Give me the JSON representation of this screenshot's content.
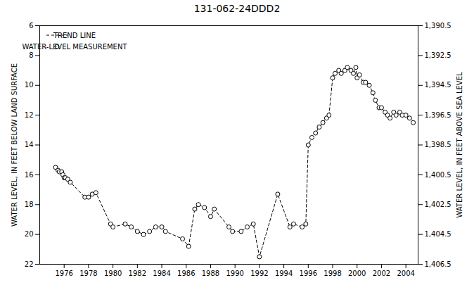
{
  "chart_data": {
    "type": "line",
    "title": "131-062-24DDD2",
    "ylabel": "WATER LEVEL, IN FEET BELOW LAND SURFACE",
    "y2label": "WATER LEVEL, IN FEET ABOVE SEA LEVEL",
    "x": [
      1975.3,
      1975.5,
      1975.6,
      1975.8,
      1975.9,
      1976.0,
      1976.1,
      1976.3,
      1976.5,
      1977.7,
      1978.0,
      1978.3,
      1978.6,
      1979.8,
      1980.0,
      1981.0,
      1981.5,
      1982.0,
      1982.5,
      1983.0,
      1983.5,
      1984.0,
      1984.3,
      1985.7,
      1986.2,
      1986.7,
      1987.0,
      1987.5,
      1988.0,
      1988.3,
      1989.5,
      1989.8,
      1990.5,
      1991.0,
      1991.5,
      1992.0,
      1993.5,
      1994.5,
      1994.8,
      1995.5,
      1995.8,
      1996.0,
      1996.3,
      1996.6,
      1996.9,
      1997.2,
      1997.5,
      1997.7,
      1998.0,
      1998.2,
      1998.5,
      1998.7,
      1999.0,
      1999.2,
      1999.5,
      1999.7,
      1999.9,
      2000.0,
      2000.2,
      2000.5,
      2000.7,
      2001.0,
      2001.3,
      2001.5,
      2001.8,
      2002.0,
      2002.3,
      2002.5,
      2002.7,
      2003.0,
      2003.2,
      2003.5,
      2003.7,
      2004.0,
      2004.3,
      2004.6
    ],
    "series": [
      {
        "name": "TREND LINE",
        "type": "line",
        "line_style": "dashed",
        "color": "#000000",
        "values": [
          15.5,
          15.7,
          15.8,
          15.8,
          16.0,
          16.2,
          16.2,
          16.3,
          16.5,
          17.5,
          17.5,
          17.3,
          17.2,
          19.3,
          19.5,
          19.3,
          19.5,
          19.8,
          20.0,
          19.8,
          19.5,
          19.5,
          19.8,
          20.3,
          20.8,
          18.3,
          18.0,
          18.2,
          18.8,
          18.3,
          19.5,
          19.8,
          19.8,
          19.5,
          19.3,
          21.5,
          17.3,
          19.5,
          19.3,
          19.5,
          19.3,
          14.0,
          13.5,
          13.2,
          12.8,
          12.5,
          12.2,
          12.0,
          9.5,
          9.2,
          9.0,
          9.2,
          9.0,
          8.8,
          9.0,
          9.2,
          8.8,
          9.5,
          9.3,
          9.8,
          9.8,
          10.0,
          10.5,
          11.0,
          11.5,
          11.5,
          11.8,
          12.0,
          12.2,
          11.8,
          12.0,
          11.8,
          12.0,
          12.0,
          12.2,
          12.5
        ]
      },
      {
        "name": "WATER-LEVEL MEASUREMENT",
        "type": "scatter",
        "marker": "circle",
        "color": "#000000",
        "values": [
          15.5,
          15.7,
          15.8,
          15.8,
          16.0,
          16.2,
          16.2,
          16.3,
          16.5,
          17.5,
          17.5,
          17.3,
          17.2,
          19.3,
          19.5,
          19.3,
          19.5,
          19.8,
          20.0,
          19.8,
          19.5,
          19.5,
          19.8,
          20.3,
          20.8,
          18.3,
          18.0,
          18.2,
          18.8,
          18.3,
          19.5,
          19.8,
          19.8,
          19.5,
          19.3,
          21.5,
          17.3,
          19.5,
          19.3,
          19.5,
          19.3,
          14.0,
          13.5,
          13.2,
          12.8,
          12.5,
          12.2,
          12.0,
          9.5,
          9.2,
          9.0,
          9.2,
          9.0,
          8.8,
          9.0,
          9.2,
          8.8,
          9.5,
          9.3,
          9.8,
          9.8,
          10.0,
          10.5,
          11.0,
          11.5,
          11.5,
          11.8,
          12.0,
          12.2,
          11.8,
          12.0,
          11.8,
          12.0,
          12.0,
          12.2,
          12.5
        ]
      }
    ],
    "xlim": [
      1974,
      2005
    ],
    "xticks": [
      1976,
      1978,
      1980,
      1982,
      1984,
      1986,
      1988,
      1990,
      1992,
      1994,
      1996,
      1998,
      2000,
      2002,
      2004
    ],
    "ylim": [
      22,
      6
    ],
    "yticks": [
      6,
      8,
      10,
      12,
      14,
      16,
      18,
      20,
      22
    ],
    "y2lim": [
      1406.5,
      1390.5
    ],
    "y2ticks": [
      {
        "value": 1390.5,
        "label": "1,390.5"
      },
      {
        "value": 1392.5,
        "label": "1,392.5"
      },
      {
        "value": 1394.5,
        "label": "1,394.5"
      },
      {
        "value": 1396.5,
        "label": "1,396.5"
      },
      {
        "value": 1398.5,
        "label": "1,398.5"
      },
      {
        "value": 1400.5,
        "label": "1,400.5"
      },
      {
        "value": 1402.5,
        "label": "1,402.5"
      },
      {
        "value": 1404.5,
        "label": "1,404.5"
      },
      {
        "value": 1406.5,
        "label": "1,406.5"
      }
    ],
    "legend": "upper left",
    "grid": false
  }
}
